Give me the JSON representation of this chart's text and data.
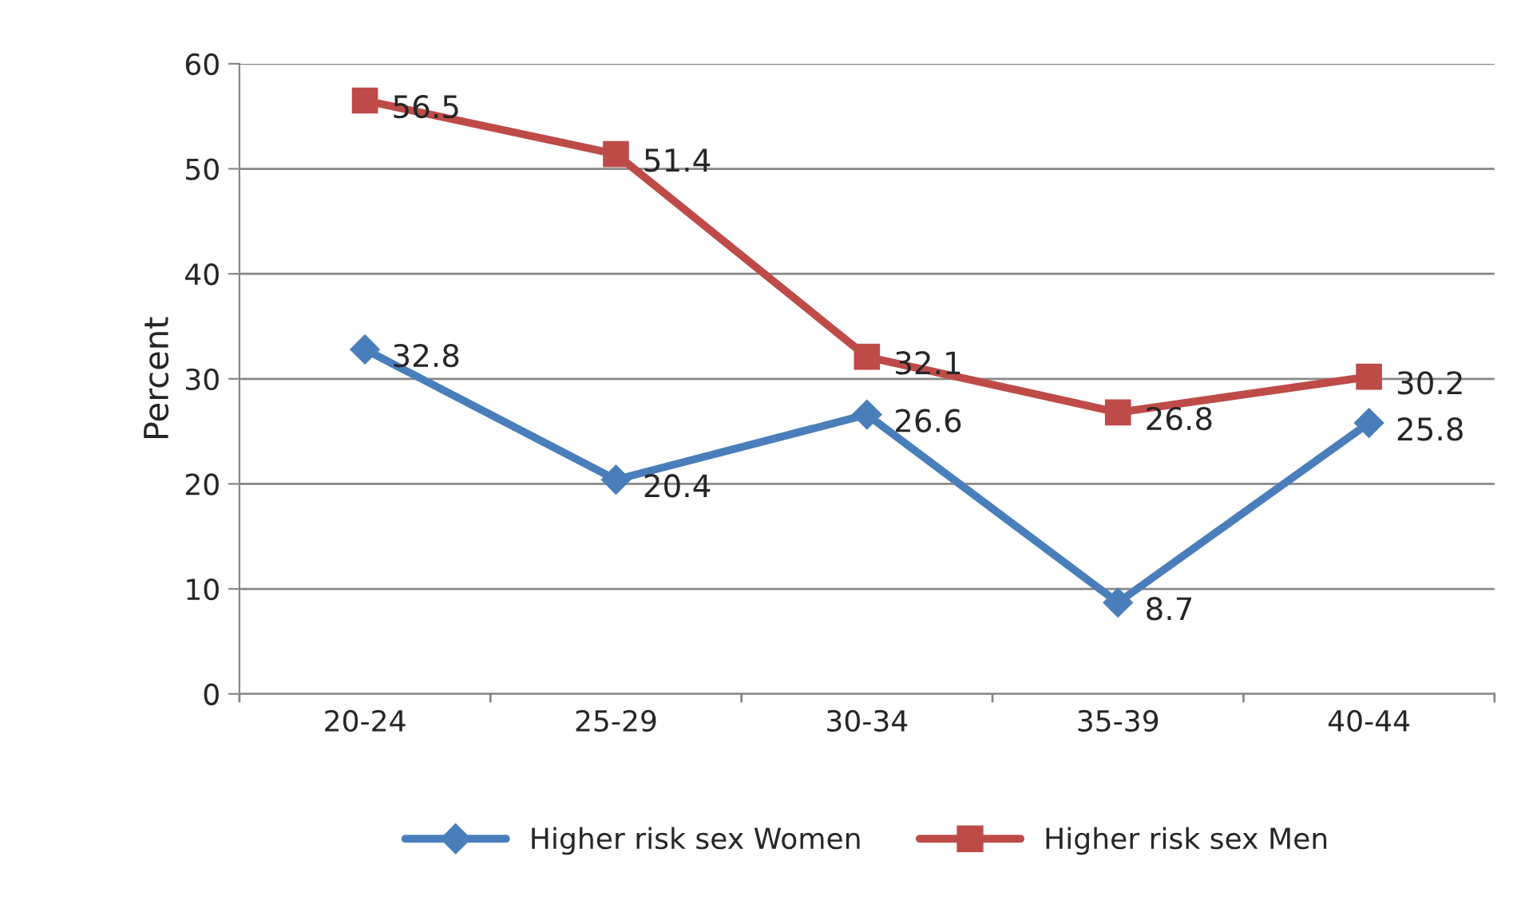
{
  "chart_data": {
    "type": "line",
    "ylabel": "Percent",
    "categories": [
      "20-24",
      "25-29",
      "30-34",
      "35-39",
      "40-44"
    ],
    "series": [
      {
        "name": "Higher risk sex Women",
        "color": "#4a7ebb",
        "marker": "diamond",
        "values": [
          32.8,
          20.4,
          26.6,
          8.7,
          25.8
        ]
      },
      {
        "name": "Higher risk sex Men",
        "color": "#be4b48",
        "marker": "square",
        "values": [
          56.5,
          51.4,
          32.1,
          26.8,
          30.2
        ]
      }
    ],
    "ylim": [
      0,
      60
    ],
    "yticks": [
      0,
      10,
      20,
      30,
      40,
      50,
      60
    ],
    "grid": "y",
    "legend": "bottom",
    "data_labels": true,
    "line_style": "solid"
  }
}
